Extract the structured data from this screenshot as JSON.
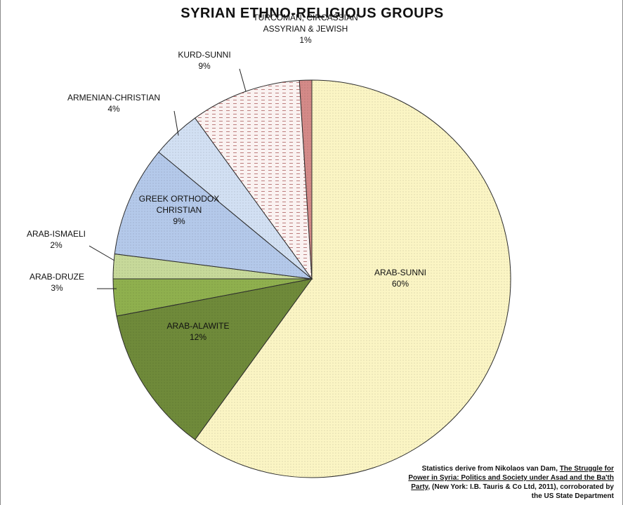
{
  "chart_data": {
    "type": "pie",
    "title": "SYRIAN ETHNO-RELIGIOUS GROUPS",
    "slices": [
      {
        "label": [
          "ARAB-SUNNI"
        ],
        "pct_label": "60%",
        "value": 60,
        "color": "#fbf5c4"
      },
      {
        "label": [
          "ARAB-ALAWITE"
        ],
        "pct_label": "12%",
        "value": 12,
        "color": "#6f8a3a"
      },
      {
        "label": [
          "ARAB-DRUZE"
        ],
        "pct_label": "3%",
        "value": 3,
        "color": "#8fb04e"
      },
      {
        "label": [
          "ARAB-ISMAELI"
        ],
        "pct_label": "2%",
        "value": 2,
        "color": "#c7d99a"
      },
      {
        "label": [
          "GREEK ORTHODOX",
          "CHRISTIAN"
        ],
        "pct_label": "9%",
        "value": 9,
        "color": "#b4c9ea"
      },
      {
        "label": [
          "ARMENIAN-CHRISTIAN"
        ],
        "pct_label": "4%",
        "value": 4,
        "color": "#d2e0f3"
      },
      {
        "label": [
          "KURD-SUNNI"
        ],
        "pct_label": "9%",
        "value": 9,
        "color": "#faf2f1"
      },
      {
        "label": [
          "TURCOMAN, CIRCASSIAN",
          "ASSYRIAN & JEWISH"
        ],
        "pct_label": "1%",
        "value": 1,
        "color": "#d48a88"
      }
    ]
  },
  "source": {
    "prefix": "Statistics derive from Nikolaos van Dam, ",
    "book_title": "The Struggle for Power in Syria: Politics and Society under Asad and the Ba'th Party",
    "suffix": ", (New York: I.B. Tauris & Co Ltd, 2011), corroborated by the US State Department"
  }
}
